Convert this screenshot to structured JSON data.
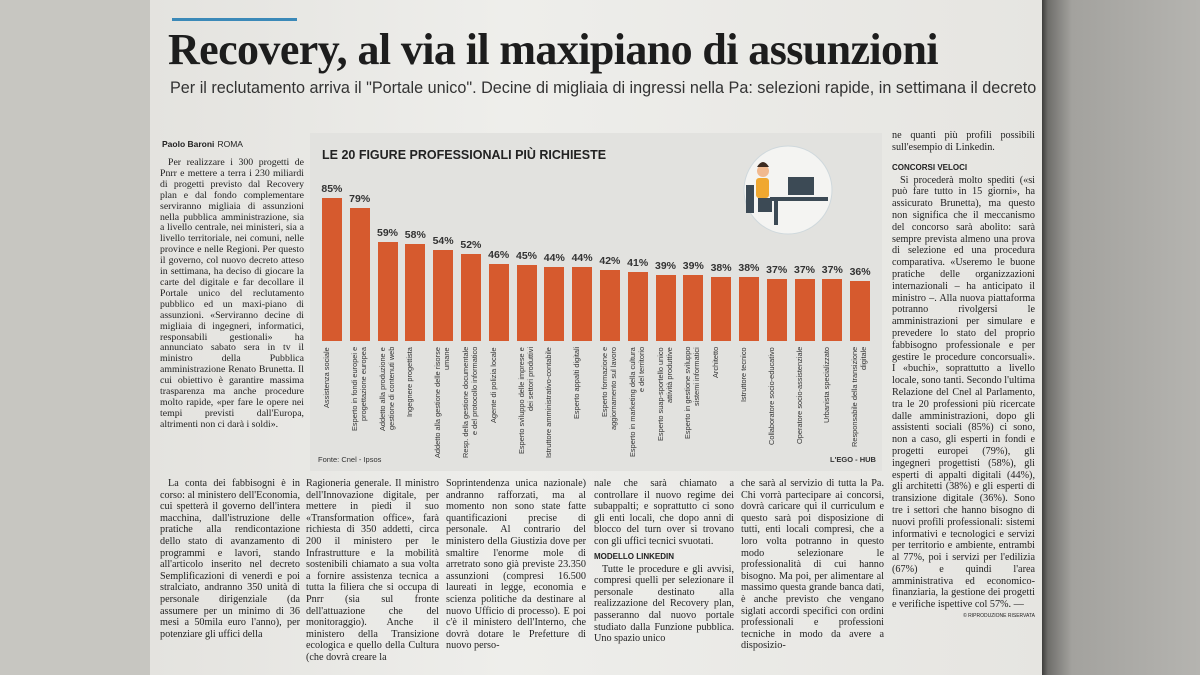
{
  "header": {
    "title": "Recovery, al via il maxipiano di assunzioni",
    "subtitle": "Per il reclutamento arriva il \"Portale unico\". Decine di migliaia di ingressi nella Pa: selezioni rapide, in settimana il decreto"
  },
  "byline": {
    "author": "Paolo Baroni",
    "place": "ROMA"
  },
  "chart_data": {
    "type": "bar",
    "title": "LE 20 FIGURE PROFESSIONALI PIÙ RICHIESTE",
    "categories": [
      "Assistenza sociale",
      "Esperto in fondi europei e progettazione europea",
      "Addetto alla produzione e gestione di contenuti web",
      "Ingegnere progettista",
      "Addetto alla gestione delle risorse umane",
      "Resp. della gestione documentale e del protocollo informatico",
      "Agente di polizia locale",
      "Esperto sviluppo delle imprese e dei settori produttivi",
      "Istruttore amministrativo-contabile",
      "Esperto appalti digitali",
      "Esperto formazione e aggiornamento sul lavoro",
      "Esperto in marketing della cultura e del territorio",
      "Esperto suap-sportello unico attività produttive",
      "Esperto in gestione sviluppo sistemi informatici",
      "Architetto",
      "Istruttore tecnico",
      "Collaboratore socio-educativo",
      "Operatore socio-assistenziale",
      "Urbanista specializzato",
      "Responsabile della transizione digitale"
    ],
    "values": [
      85,
      79,
      59,
      58,
      54,
      52,
      46,
      45,
      44,
      44,
      42,
      41,
      39,
      39,
      38,
      38,
      37,
      37,
      37,
      36
    ],
    "value_labels": [
      "85%",
      "79%",
      "59%",
      "58%",
      "54%",
      "52%",
      "46%",
      "45%",
      "44%",
      "44%",
      "42%",
      "41%",
      "39%",
      "39%",
      "38%",
      "38%",
      "37%",
      "37%",
      "37%",
      "36%"
    ],
    "color": "#d65a2e",
    "source": "Fonte: Cnel - Ipsos",
    "credit": "L'EGO - HUB"
  },
  "article": {
    "lead": "Per realizzare i 300 progetti de Pnrr e mettere a terra i 230 miliardi di progetti previsto dal Recovery plan e dal fondo complementare serviranno migliaia di assunzioni nella pubblica amministrazione, sia a livello centrale, nei ministeri, sia a livello territoriale, nei comuni, nelle province e nelle Regioni. Per questo il governo, col nuovo decreto atteso in settimana, ha deciso di giocare la carte del digitale e far decollare il Portale unico del reclutamento pubblico ed un maxi-piano di assunzioni. «Serviranno decine di migliaia di ingegneri, informatici, responsabili gestionali» ha annunciato sabato sera in tv il ministro della Pubblica amministrazione Renato Brunetta. Il cui obiettivo è garantire massima trasparenza ma anche procedure molto rapide, «per fare le opere nei tempi previsti dall'Europa, altrimenti non ci darà i soldi».",
    "col1": "La conta dei fabbisogni è in corso: al ministero dell'Economia, cui spetterà il governo dell'intera macchina, dall'istruzione delle pratiche alla rendicontazione dello stato di avanzamento di programmi e lavori, stando all'articolo inserito nel decreto Semplificazioni di venerdì e poi stralciato, andranno 350 unità di personale dirigenziale (da assumere per un minimo di 36 mesi a 50mila euro l'anno), per potenziare gli uffici della",
    "col2": "Ragioneria generale. Il ministro dell'Innovazione digitale, per mettere in piedi il suo «Transformation office», farà richiesta di 350 addetti, circa 200 il ministero per le Infrastrutture e la mobilità sostenibili chiamato a sua volta a fornire assistenza tecnica a tutta la filiera che si occupa di Pnrr (sia sul fronte dell'attuazione che del monitoraggio). Anche il ministero della Transizione ecologica e quello della Cultura (che dovrà creare la",
    "col3": "Soprintendenza unica nazionale) andranno rafforzati, ma al momento non sono state fatte quantificazioni precise di personale. Al contrario del ministero della Giustizia dove per smaltire l'enorme mole di arretrato sono già previste 23.350 assunzioni (compresi 16.500 laureati in legge, economia e scienza politiche da destinare al nuovo Ufficio di processo). E poi c'è il ministero dell'Interno, che dovrà dotare le Prefetture di nuovo perso-",
    "col4_top": "nale che sarà chiamato a controllare il nuovo regime dei subappalti; e soprattutto ci sono gli enti locali, che dopo anni di blocco del turn over si trovano con gli uffici tecnici svuotati.",
    "col4_heading": "MODELLO LINKEDIN",
    "col4_body": "Tutte le procedure e gli avvisi, compresi quelli per selezionare il personale destinato alla realizzazione del Recovery plan, passeranno dal nuovo portale studiato dalla Funzione pubblica. Uno spazio unico",
    "col5": "che sarà al servizio di tutta la Pa. Chi vorrà partecipare ai concorsi, dovrà caricare qui il curriculum e questo sarà poi disposizione di tutti, enti locali compresi, che a loro volta potranno in questo modo selezionare le professionalità di cui hanno bisogno. Ma poi, per alimentare al massimo questa grande banca dati, è anche previsto che vengano siglati accordi specifici con ordini professionali e professioni tecniche in modo da avere a disposizio-",
    "side_top": "ne quanti più profili possibili sull'esempio di Linkedin.",
    "side_heading": "CONCORSI VELOCI",
    "side_body": "Si procederà molto spediti («si può fare tutto in 15 giorni», ha assicurato Brunetta), ma questo non significa che il meccanismo del concorso sarà abolito: sarà sempre prevista almeno una prova di selezione ed una procedura comparativa. «Useremo le buone pratiche delle organizzazioni internazionali – ha anticipato il ministro –. Alla nuova piattaforma potranno rivolgersi le amministrazioni per simulare e prevedere lo stato del proprio fabbisogno professionale e per gestire le procedure concorsuali». I «buchi», soprattutto a livello locale, sono tanti. Secondo l'ultima Relazione del Cnel al Parlamento, tra le 20 professioni più ricercate dalle amministrazioni, dopo gli assistenti sociali (85%) ci sono, non a caso, gli esperti in fondi e progetti europei (79%), gli ingegneri progettisti (58%), gli esperti di appalti digitali (44%), gli architetti (38%) e gli esperti di transizione digitale (36%). Sono tre i settori che hanno bisogno di nuovi profili professionali: sistemi informativi e tecnologici e servizi per territorio e ambiente, entrambi al 77%, poi i servizi per l'edilizia (67%) e quindi l'area amministrativa ed economico-finanziaria, la gestione dei progetti e verifiche ispettive col 57%. —",
    "copyright": "© RIPRODUZIONE RISERVATA"
  }
}
